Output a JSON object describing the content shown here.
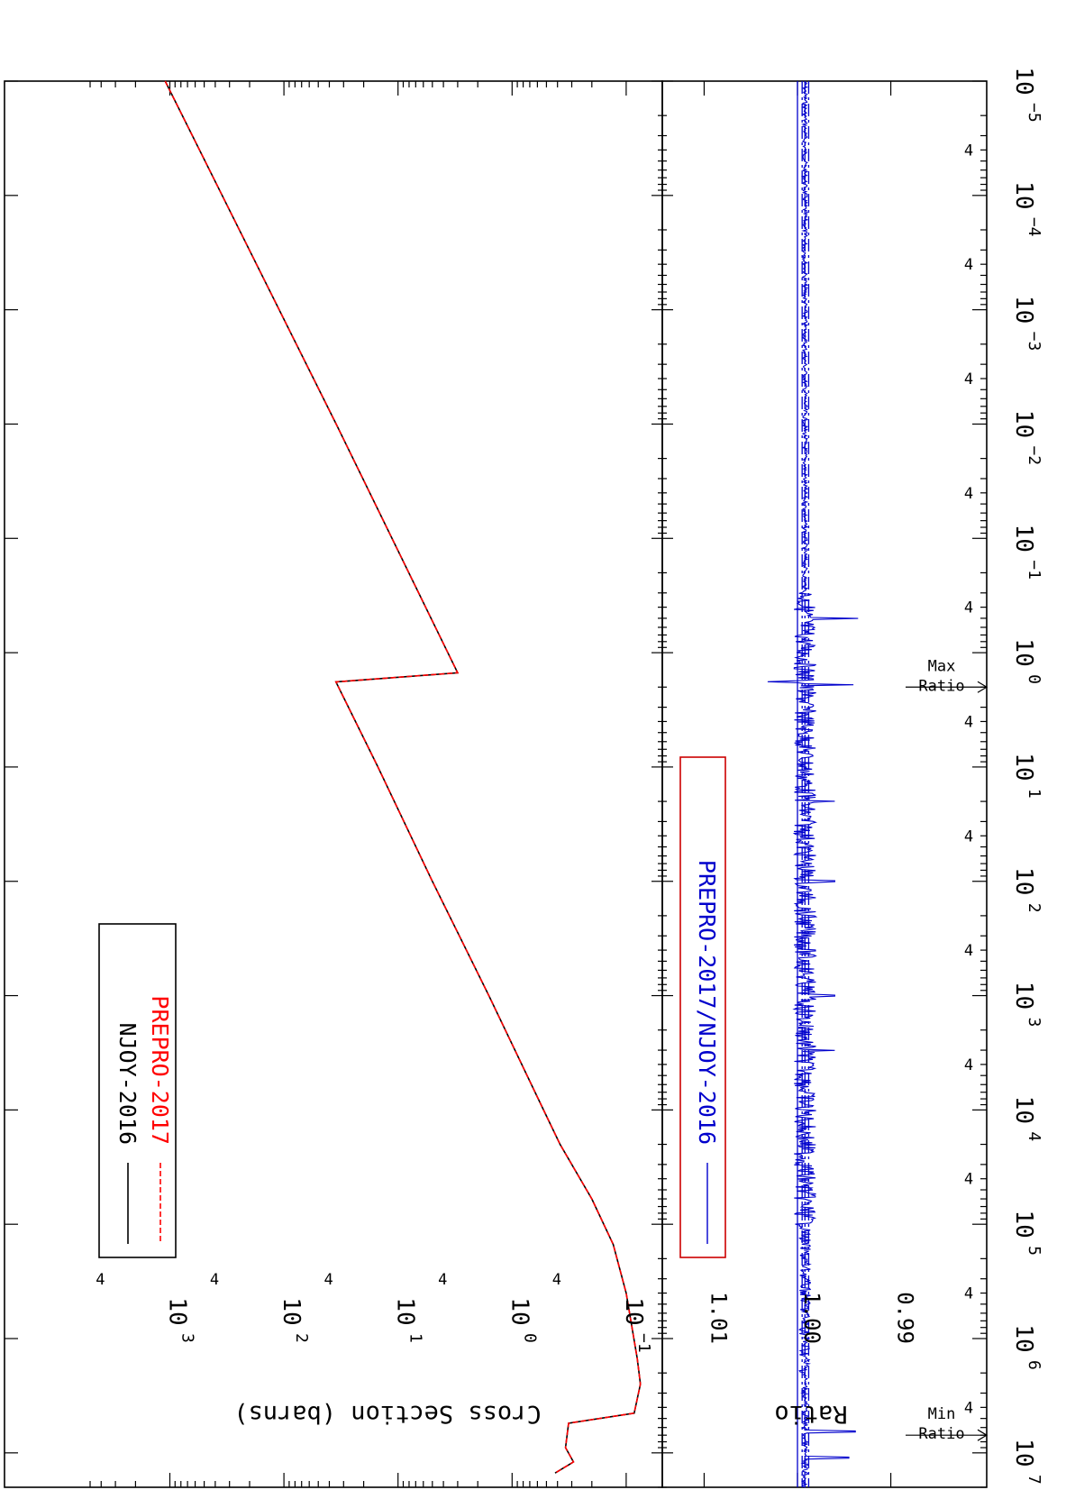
{
  "chart_data": [
    {
      "type": "line",
      "panel": "cross-section",
      "orientation": "rotated-90-clockwise",
      "ylabel": "Cross Section (barns)",
      "xscale": "log",
      "yscale": "log",
      "xlim": [
        1e-05,
        20000000.0
      ],
      "ylim": [
        0.06,
        5000
      ],
      "x_ticks": [
        "10-5",
        "10-4",
        "10-3",
        "10-2",
        "10-1",
        "100",
        "101",
        "102",
        "103",
        "104",
        "105",
        "106",
        "107"
      ],
      "y_ticks": [
        "10-1",
        "100",
        "101",
        "102",
        "103"
      ],
      "minor_tick_label": "4",
      "legend": {
        "placement": "bottom-left",
        "entries": [
          "NJOY-2016",
          "PREPRO-2017"
        ]
      },
      "series": [
        {
          "name": "NJOY-2016",
          "color": "#000000",
          "dash": "solid",
          "x": [
            1e-05,
            0.01,
            1.5,
            1.8,
            10,
            100,
            1000,
            10000,
            20000,
            60000,
            150000,
            400000,
            1500000,
            2500000,
            4500000,
            5500000,
            9000000,
            12000000,
            15000000
          ],
          "y": [
            1100,
            34.8,
            3.0,
            35.0,
            15.0,
            5.0,
            1.6,
            0.53,
            0.38,
            0.2,
            0.13,
            0.1,
            0.08,
            0.075,
            0.085,
            0.32,
            0.34,
            0.29,
            0.42
          ]
        },
        {
          "name": "PREPRO-2017",
          "color": "#ff0000",
          "dash": "dashed",
          "x": [
            1e-05,
            0.01,
            1.5,
            1.8,
            10,
            100,
            1000,
            10000,
            20000,
            60000,
            150000,
            400000,
            1500000,
            2500000,
            4500000,
            5500000,
            9000000,
            12000000,
            15000000
          ],
          "y": [
            1100,
            34.8,
            3.0,
            35.0,
            15.0,
            5.0,
            1.6,
            0.53,
            0.38,
            0.2,
            0.13,
            0.1,
            0.08,
            0.075,
            0.085,
            0.32,
            0.34,
            0.29,
            0.42
          ]
        }
      ],
      "annotations": [
        {
          "text": "Max\nRatio",
          "x": 2.0
        },
        {
          "text": "Min\nRatio",
          "x": 7000000
        }
      ]
    },
    {
      "type": "line",
      "panel": "ratio",
      "ylabel": "Ratio",
      "xscale": "log",
      "xlim": [
        1e-05,
        20000000.0
      ],
      "ylim": [
        0.986,
        1.014
      ],
      "y_ticks": [
        "0.99",
        "1.00",
        "1.01"
      ],
      "legend": {
        "placement": "bottom-left",
        "entries": [
          "PREPRO-2017/NJOY-2016"
        ]
      },
      "reference_lines": [
        0.9995,
        1.0,
        0.9992,
        0.9988
      ],
      "series": [
        {
          "name": "PREPRO-2017/NJOY-2016",
          "color": "#0000cc",
          "description_points": {
            "baseline": 0.9992,
            "spikes": [
              {
                "x": 0.5,
                "y": 0.9935
              },
              {
                "x": 1.8,
                "y": 1.0032
              },
              {
                "x": 1.9,
                "y": 0.994
              },
              {
                "x": 20,
                "y": 0.996
              },
              {
                "x": 100,
                "y": 0.996
              },
              {
                "x": 1000,
                "y": 0.996
              },
              {
                "x": 3000,
                "y": 0.996
              },
              {
                "x": 6500000,
                "y": 0.9938
              },
              {
                "x": 11000000,
                "y": 0.9945
              }
            ]
          }
        }
      ]
    }
  ]
}
